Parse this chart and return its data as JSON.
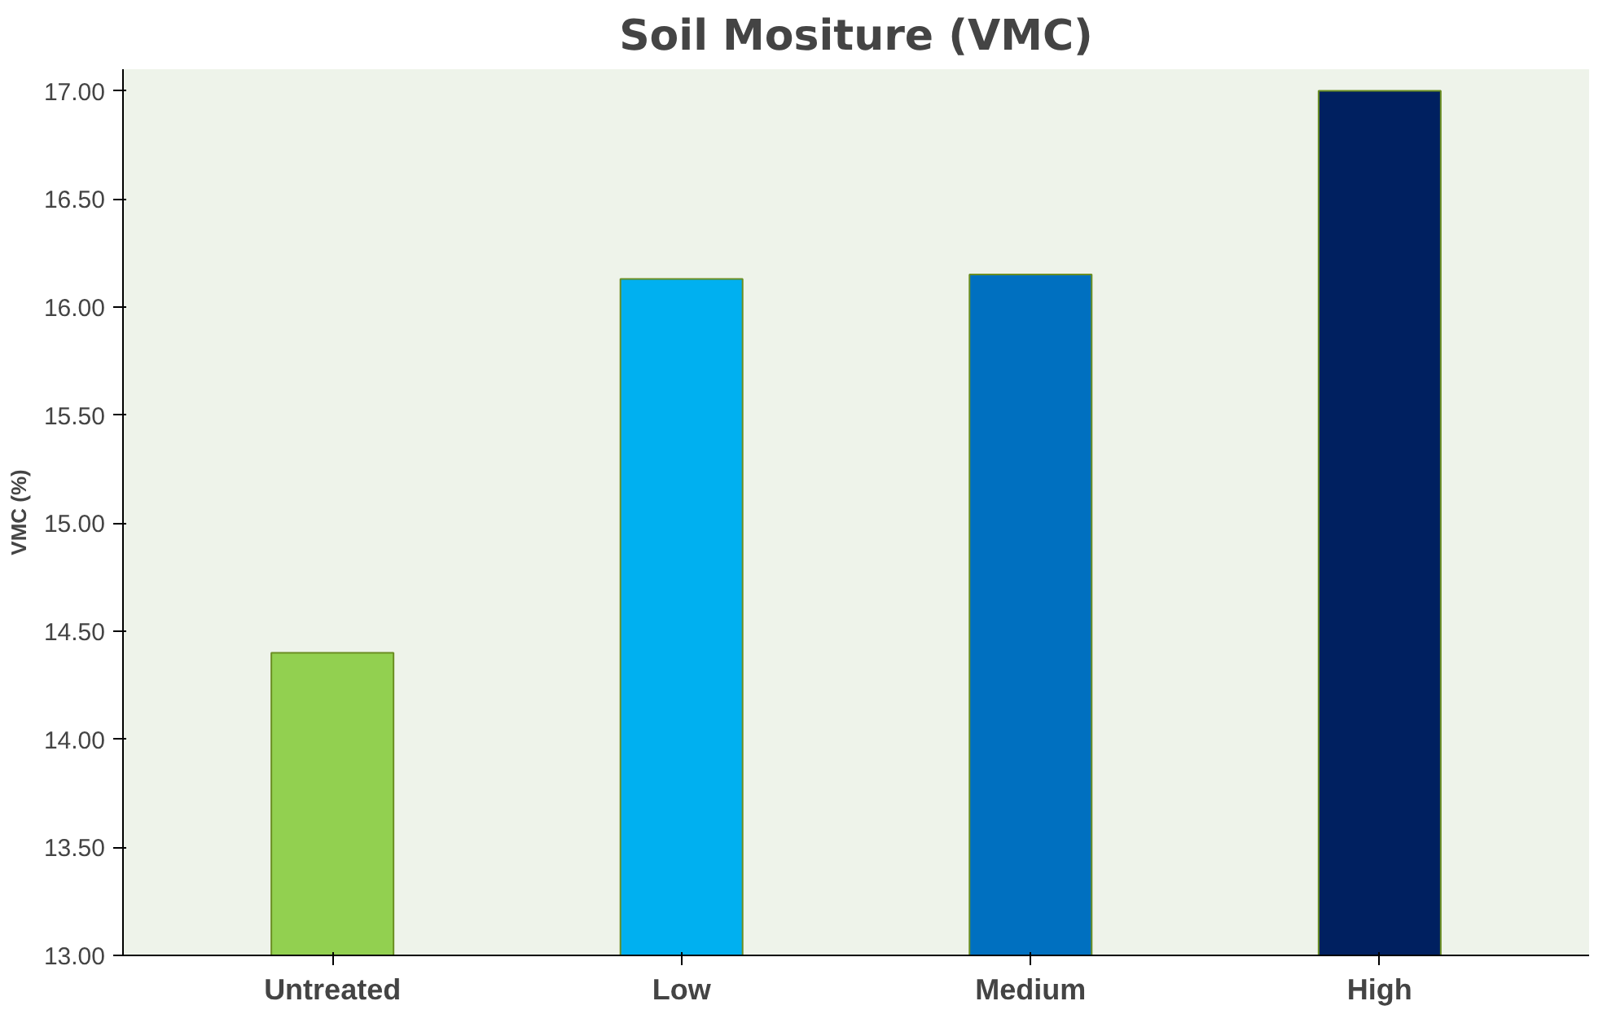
{
  "chart_data": {
    "type": "bar",
    "title": "Soil Mositure (VMC)",
    "ylabel": "VMC (%)",
    "categories": [
      "Untreated",
      "Low",
      "Medium",
      "High"
    ],
    "values": [
      14.4,
      16.13,
      16.15,
      17.0
    ],
    "colors": [
      "#92d050",
      "#00b0f0",
      "#0070c0",
      "#002060"
    ],
    "ylim": [
      13,
      17.1
    ],
    "yticks": [
      {
        "value": 13,
        "label": "13.00"
      },
      {
        "value": 13.5,
        "label": "13.50"
      },
      {
        "value": 14,
        "label": "14.00"
      },
      {
        "value": 14.5,
        "label": "14.50"
      },
      {
        "value": 15,
        "label": "15.00"
      },
      {
        "value": 15.5,
        "label": "15.50"
      },
      {
        "value": 16,
        "label": "16.00"
      },
      {
        "value": 16.5,
        "label": "16.50"
      },
      {
        "value": 17,
        "label": "17.00"
      }
    ],
    "grid": false
  }
}
